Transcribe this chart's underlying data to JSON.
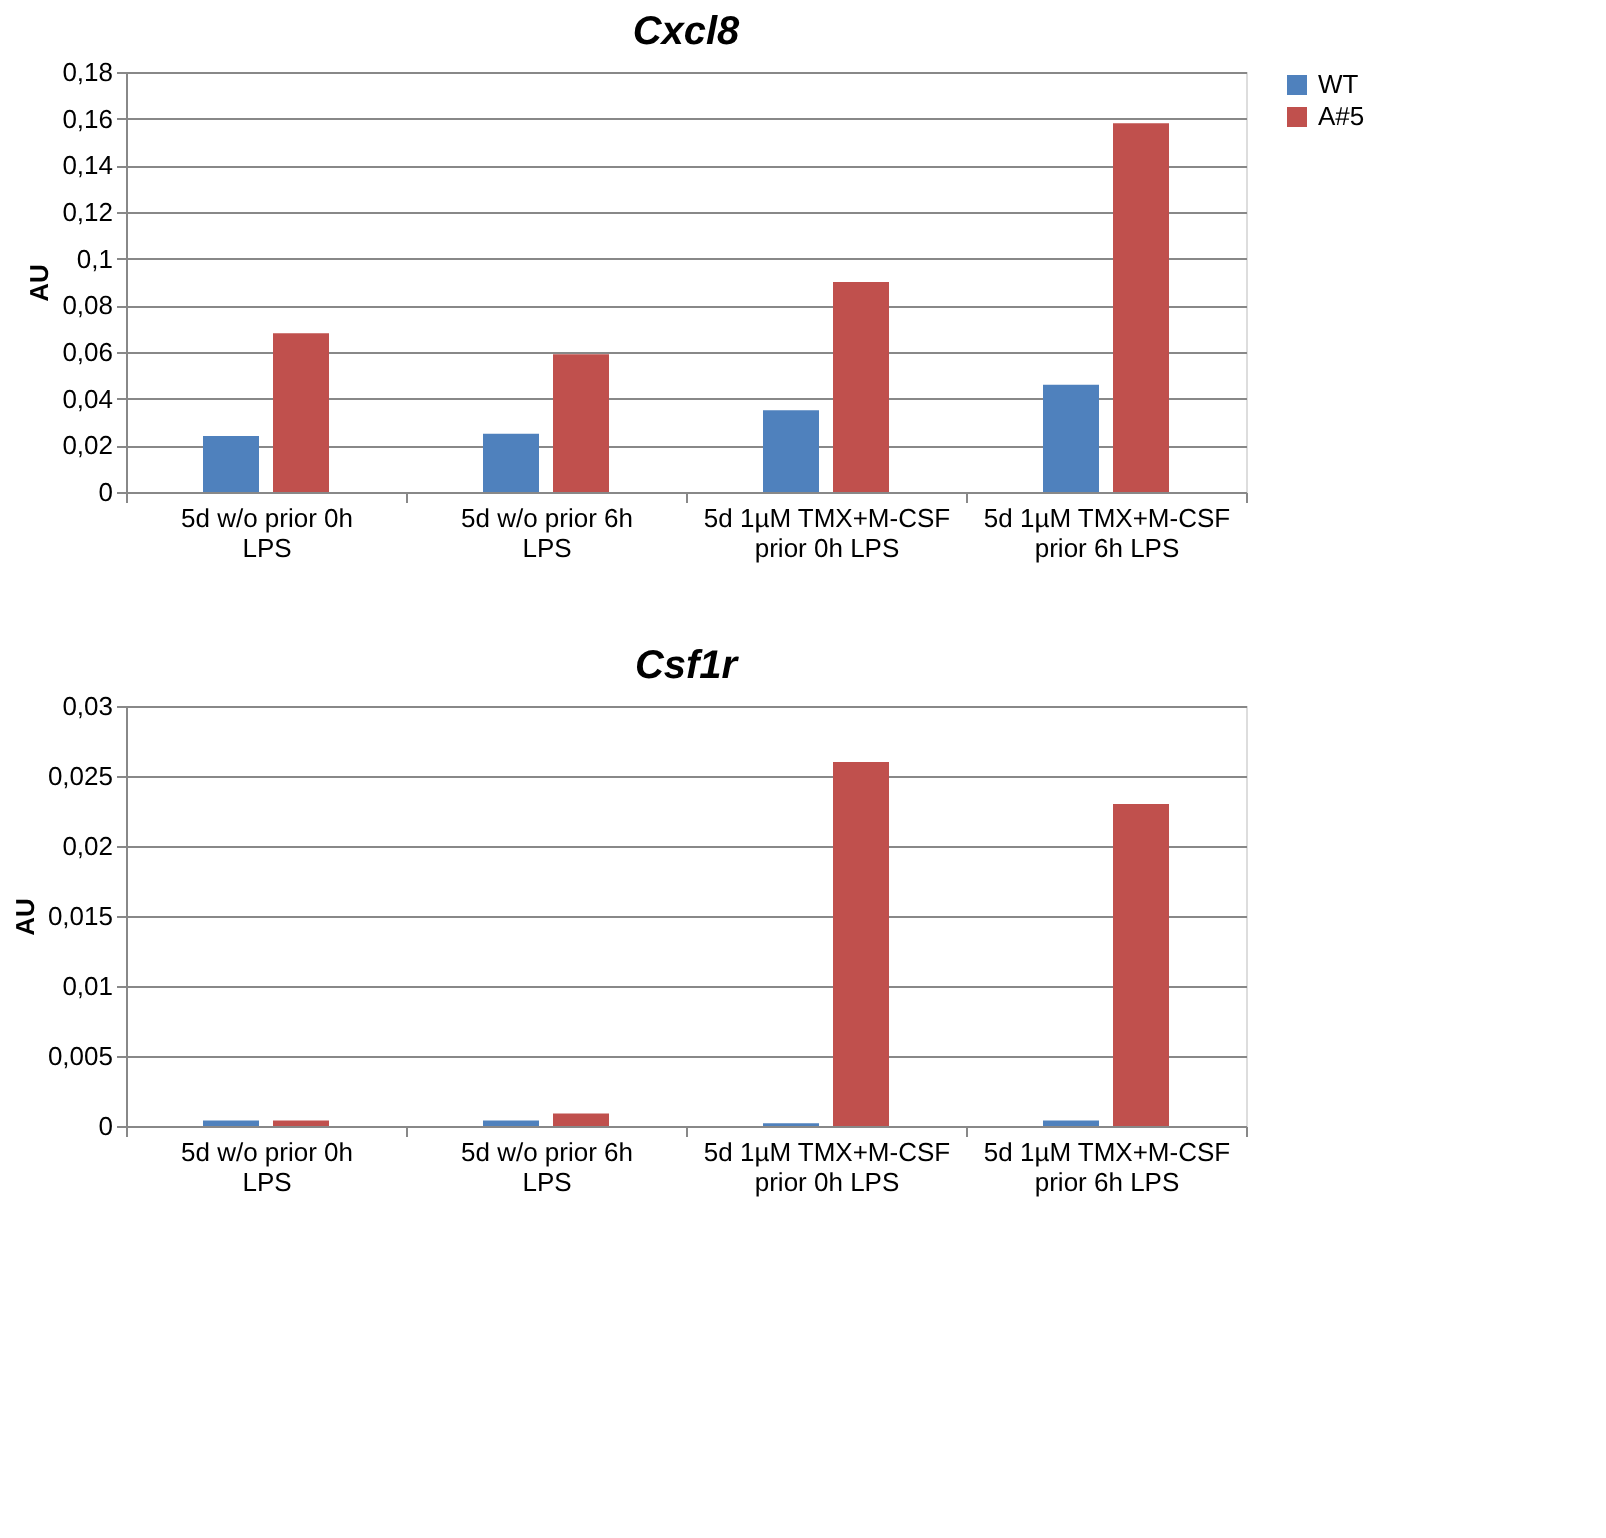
{
  "chart_data": [
    {
      "type": "bar",
      "title": "Cxcl8",
      "ylabel": "AU",
      "categories": [
        "5d w/o prior 0h LPS",
        "5d w/o prior 6h LPS",
        "5d 1µM TMX+M-CSF prior 0h LPS",
        "5d 1µM TMX+M-CSF prior 6h LPS"
      ],
      "series": [
        {
          "name": "WT",
          "color": "#4f81bd",
          "values": [
            0.024,
            0.025,
            0.035,
            0.046
          ]
        },
        {
          "name": "A#5",
          "color": "#c0504d",
          "values": [
            0.068,
            0.059,
            0.09,
            0.158
          ]
        }
      ],
      "ylim": [
        0,
        0.18
      ],
      "yticks": [
        0,
        {
          "value": 0.02,
          "label": "0,02"
        },
        {
          "value": 0.04,
          "label": "0,04"
        },
        {
          "value": 0.06,
          "label": "0,06"
        },
        {
          "value": 0.08,
          "label": "0,08"
        },
        {
          "value": 0.1,
          "label": "0,1"
        },
        {
          "value": 0.12,
          "label": "0,12"
        },
        {
          "value": 0.14,
          "label": "0,14"
        },
        {
          "value": 0.16,
          "label": "0,16"
        },
        {
          "value": 0.18,
          "label": "0,18"
        }
      ],
      "grid": "y",
      "legend": "right"
    },
    {
      "type": "bar",
      "title": "Csf1r",
      "ylabel": "AU",
      "categories": [
        "5d w/o prior 0h LPS",
        "5d w/o prior 6h LPS",
        "5d 1µM TMX+M-CSF prior 0h LPS",
        "5d 1µM TMX+M-CSF prior 6h LPS"
      ],
      "series": [
        {
          "name": "WT",
          "color": "#4f81bd",
          "values": [
            0.0004,
            0.0004,
            0.0002,
            0.0004
          ]
        },
        {
          "name": "A#5",
          "color": "#c0504d",
          "values": [
            0.0004,
            0.0009,
            0.026,
            0.023
          ]
        }
      ],
      "ylim": [
        0,
        0.03
      ],
      "yticks": [
        0,
        {
          "value": 0.005,
          "label": "0,005"
        },
        {
          "value": 0.01,
          "label": "0,01"
        },
        {
          "value": 0.015,
          "label": "0,015"
        },
        {
          "value": 0.02,
          "label": "0,02"
        },
        {
          "value": 0.025,
          "label": "0,025"
        },
        {
          "value": 0.03,
          "label": "0,03"
        }
      ],
      "grid": "y",
      "legend": "right"
    }
  ]
}
